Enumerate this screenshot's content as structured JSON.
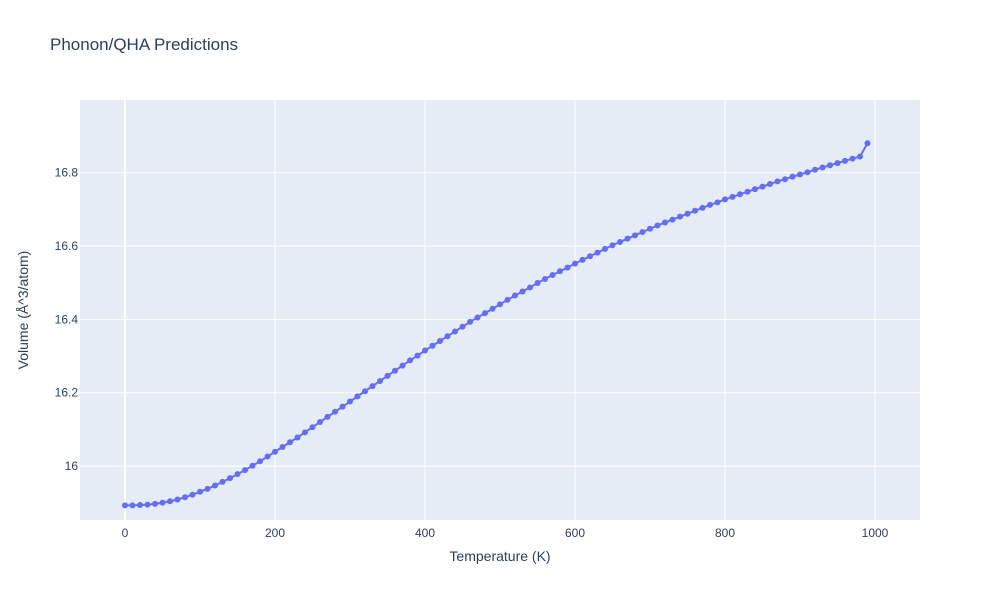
{
  "chart_data": {
    "type": "line",
    "title": "Phonon/QHA Predictions",
    "xlabel": "Temperature (K)",
    "ylabel": "Volume (Å^3/atom)",
    "xlim": [
      -60,
      1060
    ],
    "ylim": [
      15.853,
      16.998
    ],
    "x_ticks": [
      0,
      200,
      400,
      600,
      800,
      1000
    ],
    "x_tick_labels": [
      "0",
      "200",
      "400",
      "600",
      "800",
      "1000"
    ],
    "y_ticks": [
      16.0,
      16.2,
      16.4,
      16.6,
      16.8
    ],
    "y_tick_labels": [
      "16",
      "16.2",
      "16.4",
      "16.6",
      "16.8"
    ],
    "grid": true,
    "mode": "lines+markers",
    "series": [
      {
        "color": "#636efa",
        "x": [
          0,
          10,
          20,
          30,
          40,
          50,
          60,
          70,
          80,
          90,
          100,
          110,
          120,
          130,
          140,
          150,
          160,
          170,
          180,
          190,
          200,
          210,
          220,
          230,
          240,
          250,
          260,
          270,
          280,
          290,
          300,
          310,
          320,
          330,
          340,
          350,
          360,
          370,
          380,
          390,
          400,
          410,
          420,
          430,
          440,
          450,
          460,
          470,
          480,
          490,
          500,
          510,
          520,
          530,
          540,
          550,
          560,
          570,
          580,
          590,
          600,
          610,
          620,
          630,
          640,
          650,
          660,
          670,
          680,
          690,
          700,
          710,
          720,
          730,
          740,
          750,
          760,
          770,
          780,
          790,
          800,
          810,
          820,
          830,
          840,
          850,
          860,
          870,
          880,
          890,
          900,
          910,
          920,
          930,
          940,
          950,
          960,
          970,
          980,
          990
        ],
        "y": [
          15.893,
          15.893,
          15.894,
          15.895,
          15.897,
          15.9,
          15.904,
          15.909,
          15.915,
          15.922,
          15.93,
          15.938,
          15.947,
          15.957,
          15.967,
          15.978,
          15.989,
          16.001,
          16.013,
          16.026,
          16.039,
          16.052,
          16.065,
          16.078,
          16.092,
          16.106,
          16.12,
          16.134,
          16.148,
          16.162,
          16.176,
          16.19,
          16.204,
          16.218,
          16.232,
          16.246,
          16.26,
          16.274,
          16.288,
          16.301,
          16.315,
          16.328,
          16.341,
          16.354,
          16.367,
          16.38,
          16.393,
          16.405,
          16.417,
          16.429,
          16.441,
          16.453,
          16.465,
          16.476,
          16.487,
          16.499,
          16.51,
          16.521,
          16.531,
          16.541,
          16.552,
          16.562,
          16.572,
          16.582,
          16.592,
          16.602,
          16.611,
          16.62,
          16.629,
          16.638,
          16.647,
          16.656,
          16.664,
          16.672,
          16.68,
          16.688,
          16.696,
          16.704,
          16.712,
          16.719,
          16.727,
          16.734,
          16.741,
          16.748,
          16.755,
          16.762,
          16.769,
          16.776,
          16.782,
          16.789,
          16.795,
          16.801,
          16.808,
          16.814,
          16.82,
          16.826,
          16.832,
          16.838,
          16.844,
          16.88
        ]
      }
    ]
  }
}
